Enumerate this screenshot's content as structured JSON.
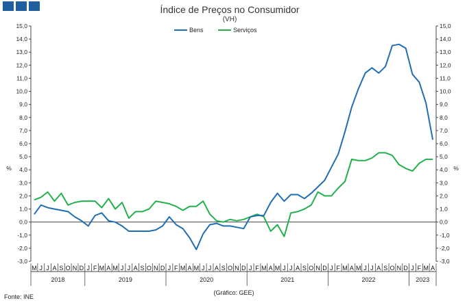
{
  "header": {
    "title": "Índice de Preços no Consumidor",
    "subtitle": "(VH)"
  },
  "footer": {
    "source": "Fonte: INE",
    "credit": "(Gráfico: GEE)"
  },
  "colors": {
    "bens": "#1f6db5",
    "servicos": "#22b04b",
    "logo": "#1f5f9f"
  },
  "icons": [
    "logo-squares-icon"
  ],
  "chart_data": {
    "type": "line",
    "ylabel_left": "%",
    "ylabel_right": "%",
    "ylim": [
      -3,
      15
    ],
    "y_ticks": [
      "15,0",
      "14,0",
      "13,0",
      "12,0",
      "11,0",
      "10,0",
      "9,0",
      "8,0",
      "7,0",
      "6,0",
      "5,0",
      "4,0",
      "3,0",
      "2,0",
      "1,0",
      "0,0",
      "-1,0",
      "-2,0",
      "-3,0"
    ],
    "grid": false,
    "legend_position": "top-center",
    "x_months": [
      "M",
      "J",
      "J",
      "A",
      "S",
      "O",
      "N",
      "D",
      "J",
      "F",
      "M",
      "A",
      "M",
      "J",
      "J",
      "A",
      "S",
      "O",
      "N",
      "D",
      "J",
      "F",
      "M",
      "A",
      "M",
      "J",
      "J",
      "A",
      "S",
      "O",
      "N",
      "D",
      "J",
      "F",
      "M",
      "A",
      "M",
      "J",
      "J",
      "A",
      "S",
      "O",
      "N",
      "D",
      "J",
      "F",
      "M",
      "A",
      "M",
      "J",
      "J",
      "A",
      "S",
      "O",
      "N",
      "D",
      "J",
      "F",
      "M",
      "A"
    ],
    "x_years": [
      {
        "label": "2018",
        "start": 0,
        "end": 7
      },
      {
        "label": "2019",
        "start": 8,
        "end": 19
      },
      {
        "label": "2020",
        "start": 20,
        "end": 31
      },
      {
        "label": "2021",
        "start": 32,
        "end": 43
      },
      {
        "label": "2022",
        "start": 44,
        "end": 55
      },
      {
        "label": "2023",
        "start": 56,
        "end": 59
      }
    ],
    "series": [
      {
        "name": "Bens",
        "values": [
          0.6,
          1.3,
          1.1,
          1.0,
          0.9,
          0.8,
          0.4,
          0.1,
          -0.3,
          0.5,
          0.7,
          0.1,
          0.0,
          -0.3,
          -0.7,
          -0.7,
          -0.7,
          -0.7,
          -0.6,
          -0.3,
          0.4,
          -0.2,
          -0.5,
          -1.2,
          -2.1,
          -0.9,
          -0.2,
          -0.1,
          -0.3,
          -0.3,
          -0.4,
          -0.5,
          0.4,
          0.5,
          0.5,
          1.5,
          2.2,
          1.6,
          2.1,
          2.1,
          1.8,
          2.2,
          2.7,
          3.2,
          4.2,
          5.2,
          6.9,
          8.8,
          10.2,
          11.4,
          11.8,
          11.4,
          11.9,
          13.5,
          13.6,
          13.3,
          11.3,
          10.7,
          9.1,
          6.3
        ]
      },
      {
        "name": "Serviços",
        "values": [
          1.7,
          1.9,
          2.3,
          1.6,
          2.2,
          1.3,
          1.5,
          1.6,
          1.6,
          1.6,
          1.1,
          1.8,
          1.0,
          1.5,
          0.3,
          0.8,
          0.8,
          1.0,
          1.6,
          1.5,
          1.4,
          1.2,
          0.9,
          1.2,
          1.2,
          1.6,
          0.6,
          0.1,
          0.0,
          0.2,
          0.1,
          0.2,
          0.4,
          0.6,
          0.4,
          -0.7,
          -0.2,
          -1.1,
          0.7,
          0.8,
          1.0,
          1.3,
          2.3,
          2.0,
          2.0,
          2.6,
          3.1,
          4.8,
          4.7,
          4.7,
          4.9,
          5.3,
          5.3,
          5.1,
          4.4,
          4.1,
          3.9,
          4.5,
          4.8,
          4.8
        ]
      }
    ]
  }
}
